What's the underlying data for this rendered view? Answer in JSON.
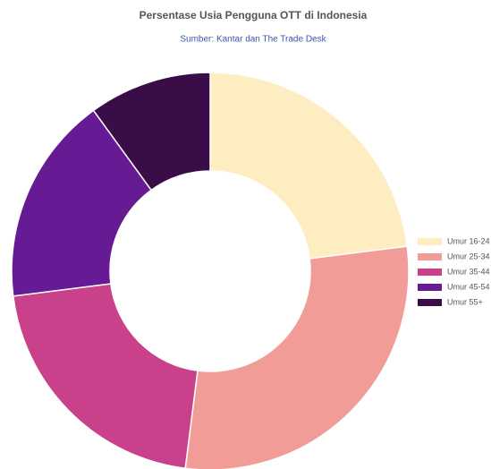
{
  "chart_data": {
    "type": "donut",
    "title": "Persentase Usia Pengguna OTT di Indonesia",
    "subtitle": "Sumber: Kantar dan The Trade Desk",
    "categories": [
      "Umur 16-24",
      "Umur 25-34",
      "Umur 35-44",
      "Umur 45-54",
      "Umur 55+"
    ],
    "values": [
      23,
      29,
      21,
      17,
      10
    ],
    "colors": [
      "#feedc0",
      "#f29c97",
      "#c8418a",
      "#661a93",
      "#3a0d48"
    ],
    "legend": "right"
  }
}
